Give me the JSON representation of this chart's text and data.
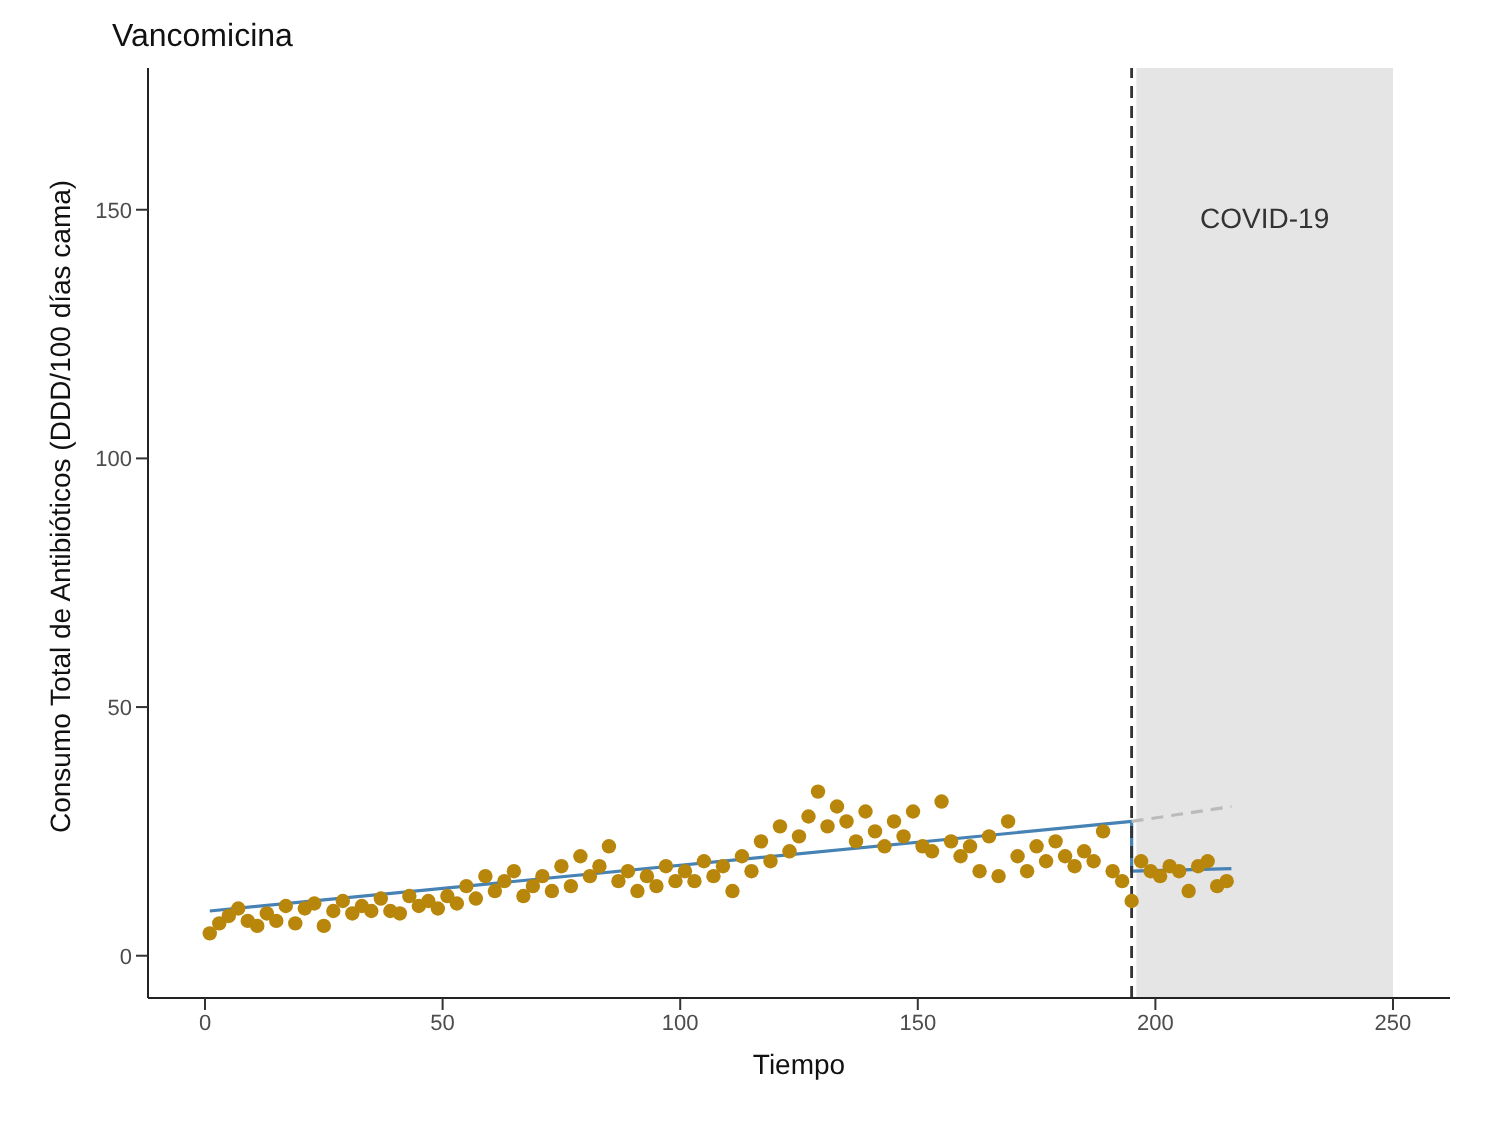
{
  "chart_data": {
    "type": "scatter",
    "title": "Vancomicina",
    "xlabel": "Tiempo",
    "ylabel": "Consumo Total de Antibióticos (DDD/100 días cama)",
    "xlim": [
      -12,
      262
    ],
    "xticks": [
      0,
      50,
      100,
      150,
      200,
      250
    ],
    "ylim": [
      -8.5,
      178.5
    ],
    "yticks": [
      0,
      50,
      100,
      150
    ],
    "grid": false,
    "legend": false,
    "series": [
      {
        "color": "#b8860b",
        "marker": "circle",
        "x": [
          1,
          3,
          5,
          7,
          9,
          11,
          13,
          15,
          17,
          19,
          21,
          23,
          25,
          27,
          29,
          31,
          33,
          35,
          37,
          39,
          41,
          43,
          45,
          47,
          49,
          51,
          53,
          55,
          57,
          59,
          61,
          63,
          65,
          67,
          69,
          71,
          73,
          75,
          77,
          79,
          81,
          83,
          85,
          87,
          89,
          91,
          93,
          95,
          97,
          99,
          101,
          103,
          105,
          107,
          109,
          111,
          113,
          115,
          117,
          119,
          121,
          123,
          125,
          127,
          129,
          131,
          133,
          135,
          137,
          139,
          141,
          143,
          145,
          147,
          149,
          151,
          153,
          155,
          157,
          159,
          161,
          163,
          165,
          167,
          169,
          171,
          173,
          175,
          177,
          179,
          181,
          183,
          185,
          187,
          189,
          191,
          193,
          195,
          197,
          199,
          201,
          203,
          205,
          207,
          209,
          211,
          213,
          215
        ],
        "values": [
          4.5,
          6.5,
          8,
          9.5,
          7,
          6,
          8.5,
          7,
          10,
          6.5,
          9.5,
          10.5,
          6,
          9,
          11,
          8.5,
          10,
          9,
          11.5,
          9,
          8.5,
          12,
          10,
          11,
          9.5,
          12,
          10.5,
          14,
          11.5,
          16,
          13,
          15,
          17,
          12,
          14,
          16,
          13,
          18,
          14,
          20,
          16,
          18,
          22,
          15,
          17,
          13,
          16,
          14,
          18,
          15,
          17,
          15,
          19,
          16,
          18,
          13,
          20,
          17,
          23,
          19,
          26,
          21,
          24,
          28,
          33,
          26,
          30,
          27,
          23,
          29,
          25,
          22,
          27,
          24,
          29,
          22,
          21,
          31,
          23,
          20,
          22,
          17,
          24,
          16,
          27,
          20,
          17,
          22,
          19,
          23,
          20,
          18,
          21,
          19,
          25,
          17,
          15,
          11,
          19,
          17,
          16,
          18,
          17,
          13,
          18,
          19,
          14,
          15
        ]
      },
      {
        "type": "line",
        "color": "#4682b4",
        "line_style": "solid",
        "marker": "none",
        "x": [
          1,
          195,
          195,
          216
        ],
        "values": [
          9,
          27,
          17,
          17.5
        ]
      },
      {
        "type": "line",
        "color": "#bbbbbb",
        "line_style": "dashed",
        "marker": "none",
        "x": [
          195,
          216
        ],
        "values": [
          27,
          30
        ]
      }
    ],
    "ref_lines": [
      {
        "axis": "x",
        "value": 195,
        "color": "#333333",
        "line_style": "dashed"
      }
    ],
    "bands": [
      {
        "axis": "x",
        "from": 196,
        "to": 250,
        "label": "COVID-19",
        "color": "#e5e5e5"
      }
    ]
  }
}
